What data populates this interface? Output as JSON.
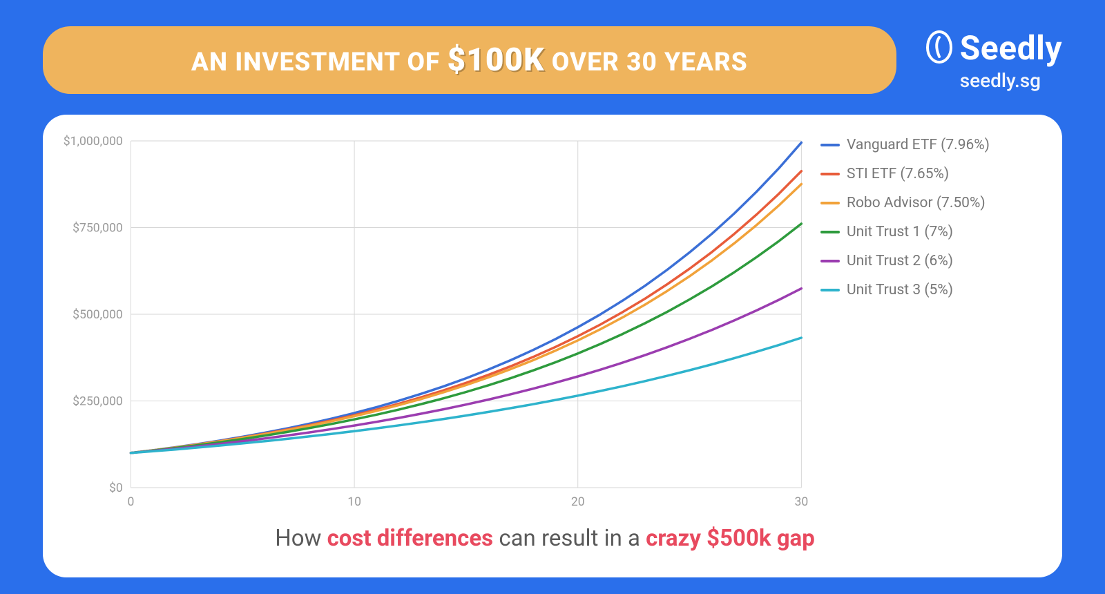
{
  "header": {
    "title_pre": "AN INVESTMENT OF ",
    "title_big": "$100K",
    "title_post": " OVER 30 YEARS",
    "pill_bg": "#efb45d",
    "pill_text_color": "#ffffff",
    "title_fontsize": 37,
    "big_fontsize": 46
  },
  "brand": {
    "name": "Seedly",
    "url": "seedly.sg",
    "icon": "leaf-drop",
    "color": "#ffffff",
    "name_fontsize": 48,
    "url_fontsize": 28
  },
  "page": {
    "bg": "#2a6feb",
    "card_bg": "#ffffff",
    "card_radius": 34
  },
  "chart": {
    "type": "line",
    "x_label": "",
    "y_label": "",
    "xlim": [
      0,
      30
    ],
    "ylim": [
      0,
      1000000
    ],
    "x_ticks": [
      0,
      10,
      20,
      30
    ],
    "y_ticks": [
      0,
      250000,
      500000,
      750000,
      1000000
    ],
    "y_tick_labels": [
      "$0",
      "$250,000",
      "$500,000",
      "$750,000",
      "$1,000,000"
    ],
    "x_tick_labels": [
      "0",
      "10",
      "20",
      "30"
    ],
    "grid_color": "#d6d6d6",
    "axis_text_color": "#9a9a9a",
    "axis_fontsize": 18,
    "line_width": 3.5,
    "background_color": "#ffffff",
    "initial": 100000,
    "years": [
      0,
      1,
      2,
      3,
      4,
      5,
      6,
      7,
      8,
      9,
      10,
      11,
      12,
      13,
      14,
      15,
      16,
      17,
      18,
      19,
      20,
      21,
      22,
      23,
      24,
      25,
      26,
      27,
      28,
      29,
      30
    ],
    "series": [
      {
        "name": "Vanguard ETF (7.96%)",
        "rate": 0.0796,
        "color": "#3b6fd6"
      },
      {
        "name": "STI ETF (7.65%)",
        "rate": 0.0765,
        "color": "#e85c3a"
      },
      {
        "name": "Robo Advisor (7.50%)",
        "rate": 0.075,
        "color": "#f1a23a"
      },
      {
        "name": "Unit Trust 1 (7%)",
        "rate": 0.07,
        "color": "#2e9b3d"
      },
      {
        "name": "Unit Trust 2 (6%)",
        "rate": 0.06,
        "color": "#9b3db0"
      },
      {
        "name": "Unit Trust 3 (5%)",
        "rate": 0.05,
        "color": "#2eb3cc"
      }
    ]
  },
  "caption": {
    "part1": "How ",
    "em1": "cost differences",
    "part2": " can result in a ",
    "em2": "crazy $500k gap",
    "text_color": "#5a5a5a",
    "em_color": "#e84a5f",
    "fontsize": 33
  }
}
